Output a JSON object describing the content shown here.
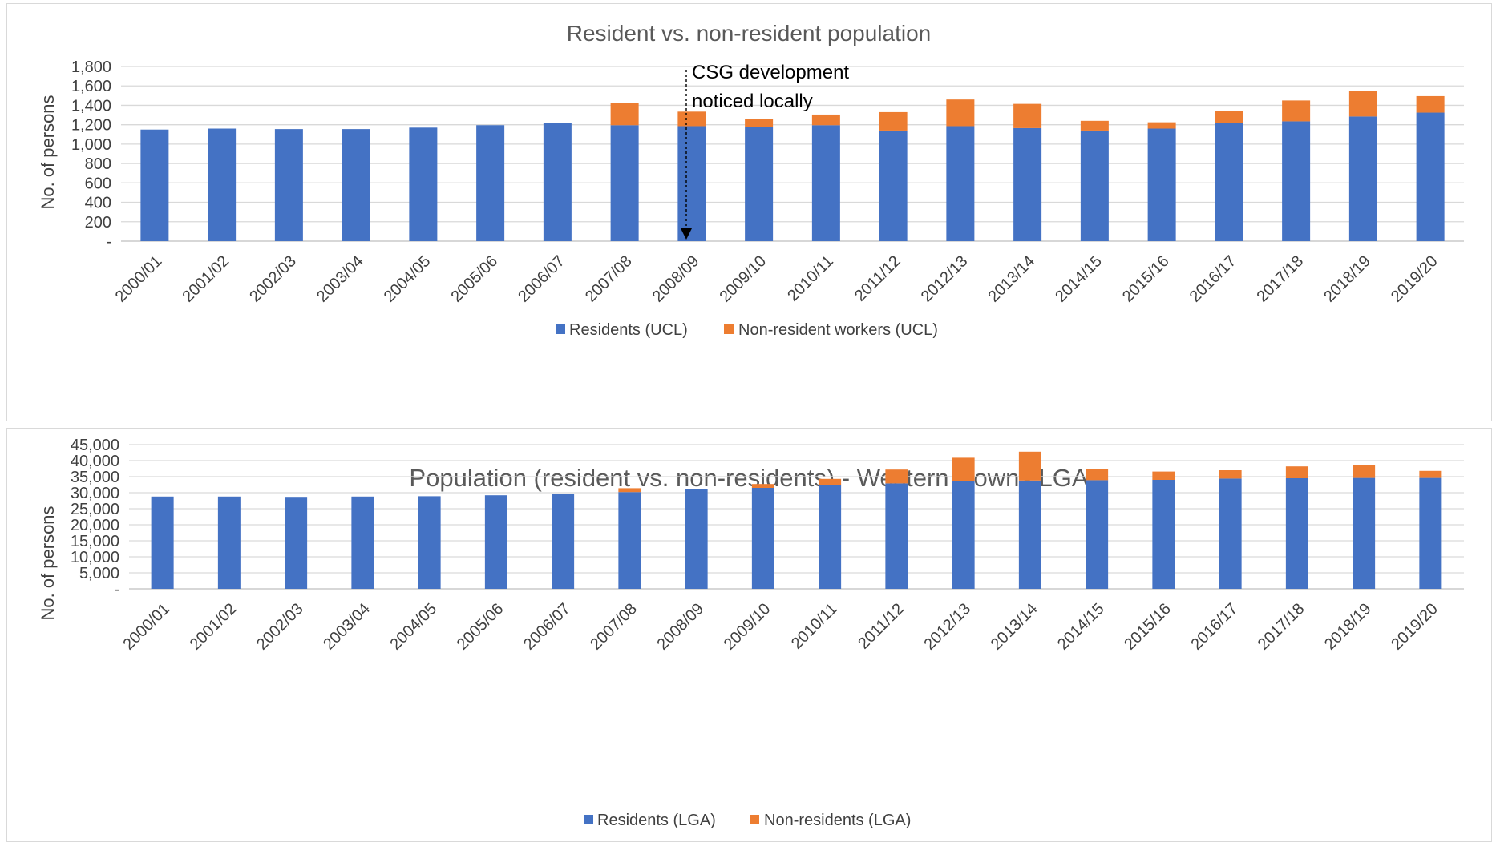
{
  "colors": {
    "residents": "#4472c4",
    "nonresidents": "#ed7d31",
    "grid": "#d9d9d9",
    "text": "#404040",
    "title": "#595959"
  },
  "chart_data": [
    {
      "type": "bar",
      "stacked": true,
      "title": "Resident vs. non-resident population",
      "ylabel": "No. of persons",
      "xlabel": "",
      "ylim": [
        0,
        1800
      ],
      "yticks": [
        0,
        200,
        400,
        600,
        800,
        1000,
        1200,
        1400,
        1600,
        1800
      ],
      "ytick_labels": [
        "-",
        "200",
        "400",
        "600",
        "800",
        "1,000",
        "1,200",
        "1,400",
        "1,600",
        "1,800"
      ],
      "grid": true,
      "legend_position": "bottom",
      "categories": [
        "2000/01",
        "2001/02",
        "2002/03",
        "2003/04",
        "2004/05",
        "2005/06",
        "2006/07",
        "2007/08",
        "2008/09",
        "2009/10",
        "2010/11",
        "2011/12",
        "2012/13",
        "2013/14",
        "2014/15",
        "2015/16",
        "2016/17",
        "2017/18",
        "2018/19",
        "2019/20"
      ],
      "series": [
        {
          "name": "Residents (UCL)",
          "values": [
            1150,
            1160,
            1155,
            1155,
            1170,
            1195,
            1215,
            1195,
            1185,
            1180,
            1195,
            1140,
            1185,
            1165,
            1140,
            1160,
            1215,
            1235,
            1285,
            1325
          ]
        },
        {
          "name": "Non-resident workers (UCL)",
          "values": [
            0,
            0,
            0,
            0,
            0,
            0,
            0,
            230,
            150,
            80,
            110,
            190,
            275,
            250,
            100,
            65,
            125,
            215,
            260,
            170
          ]
        }
      ],
      "annotation": {
        "lines": [
          "CSG development",
          "noticed locally"
        ],
        "category": "2008/09"
      }
    },
    {
      "type": "bar",
      "stacked": true,
      "title": "Population (resident vs. non-residents) - Western Downs LGA",
      "ylabel": "No. of persons",
      "xlabel": "",
      "ylim": [
        0,
        45000
      ],
      "yticks": [
        0,
        5000,
        10000,
        15000,
        20000,
        25000,
        30000,
        35000,
        40000,
        45000
      ],
      "ytick_labels": [
        "-",
        "5,000",
        "10,000",
        "15,000",
        "20,000",
        "25,000",
        "30,000",
        "35,000",
        "40,000",
        "45,000"
      ],
      "grid": true,
      "legend_position": "bottom",
      "categories": [
        "2000/01",
        "2001/02",
        "2002/03",
        "2003/04",
        "2004/05",
        "2005/06",
        "2006/07",
        "2007/08",
        "2008/09",
        "2009/10",
        "2010/11",
        "2011/12",
        "2012/13",
        "2013/14",
        "2014/15",
        "2015/16",
        "2016/17",
        "2017/18",
        "2018/19",
        "2019/20"
      ],
      "series": [
        {
          "name": "Residents (LGA)",
          "values": [
            28800,
            28800,
            28700,
            28800,
            28900,
            29200,
            29600,
            30200,
            31000,
            31500,
            32400,
            32900,
            33500,
            33800,
            33900,
            34000,
            34400,
            34500,
            34600,
            34600
          ]
        },
        {
          "name": "Non-residents (LGA)",
          "values": [
            0,
            0,
            0,
            0,
            0,
            0,
            0,
            1200,
            0,
            1200,
            1900,
            4300,
            7400,
            9000,
            3600,
            2600,
            2600,
            3700,
            4100,
            2200
          ]
        }
      ]
    }
  ]
}
